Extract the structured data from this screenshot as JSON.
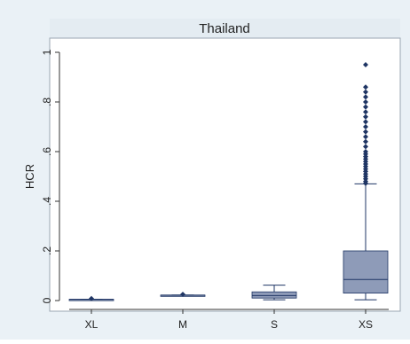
{
  "chart_data": {
    "type": "box",
    "title": "Thailand",
    "xlabel": "",
    "ylabel": "HCR",
    "ylim": [
      0,
      1
    ],
    "yticks": [
      {
        "value": 0,
        "label": "0"
      },
      {
        "value": 0.2,
        "label": ".2"
      },
      {
        "value": 0.4,
        "label": ".4"
      },
      {
        "value": 0.6,
        "label": ".6"
      },
      {
        "value": 0.8,
        "label": ".8"
      },
      {
        "value": 1,
        "label": "1"
      }
    ],
    "categories": [
      "XL",
      "M",
      "S",
      "XS"
    ],
    "boxes": [
      {
        "category": "XL",
        "min": 0.005,
        "q1": 0.005,
        "median": 0.005,
        "q3": 0.005,
        "max": 0.005,
        "outliers": [
          0.008
        ]
      },
      {
        "category": "M",
        "min": 0.022,
        "q1": 0.022,
        "median": 0.022,
        "q3": 0.022,
        "max": 0.022,
        "outliers": [
          0.025
        ]
      },
      {
        "category": "S",
        "min": 0.003,
        "q1": 0.01,
        "median": 0.02,
        "q3": 0.035,
        "max": 0.062,
        "outliers": []
      },
      {
        "category": "XS",
        "min": 0.003,
        "q1": 0.03,
        "median": 0.085,
        "q3": 0.2,
        "max": 0.47,
        "outliers": [
          0.472,
          0.48,
          0.49,
          0.5,
          0.51,
          0.52,
          0.53,
          0.54,
          0.55,
          0.56,
          0.57,
          0.58,
          0.59,
          0.6,
          0.62,
          0.64,
          0.66,
          0.68,
          0.7,
          0.72,
          0.74,
          0.76,
          0.78,
          0.8,
          0.82,
          0.84,
          0.86,
          0.95
        ]
      }
    ],
    "grid": false,
    "colors": {
      "box_fill": "#8e9bb8",
      "box_stroke": "#1f3564",
      "marker": "#1f3564",
      "title_band": "#e4ecf2",
      "outer_background": "#eaf1f6",
      "plot_background": "#ffffff"
    }
  }
}
